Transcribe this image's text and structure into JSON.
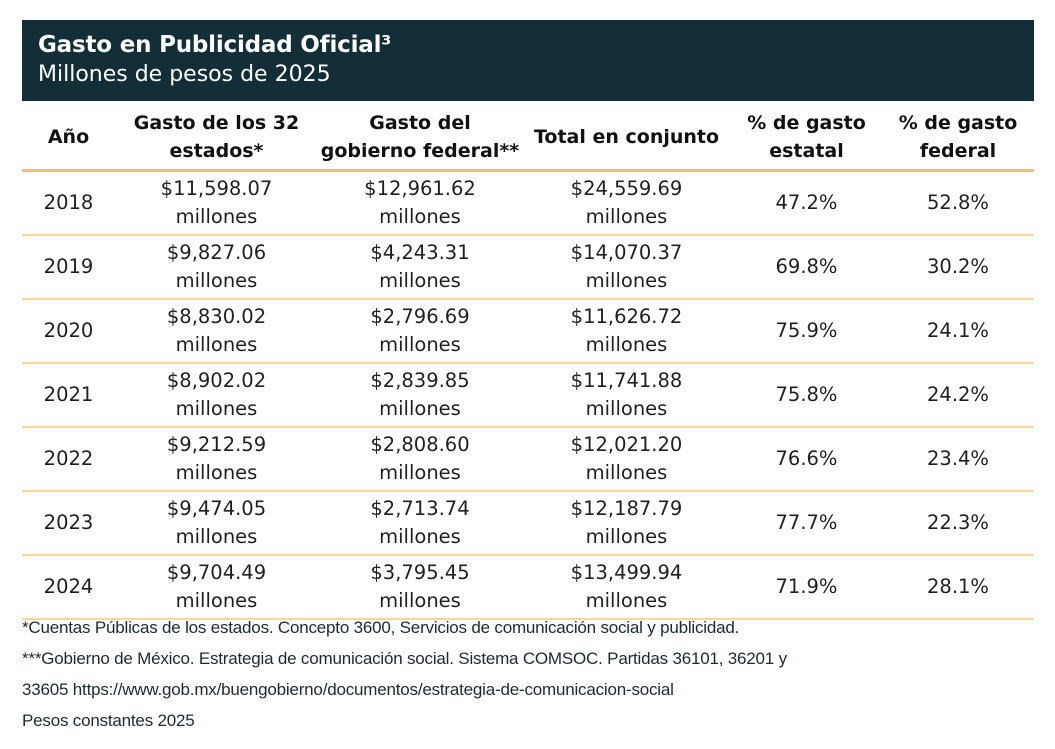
{
  "header": {
    "title": "Gasto en Publicidad Oficial³",
    "subtitle": "Millones de pesos de 2025",
    "background_color": "#132e36",
    "accent_color": "#f2c26b"
  },
  "table": {
    "columns": [
      {
        "line1": "Año",
        "line2": ""
      },
      {
        "line1": "Gasto de los 32",
        "line2": "estados*"
      },
      {
        "line1": "Gasto del",
        "line2": "gobierno federal**"
      },
      {
        "line1": "Total en conjunto",
        "line2": ""
      },
      {
        "line1": "% de gasto",
        "line2": "estatal"
      },
      {
        "line1": "% de gasto",
        "line2": "federal"
      }
    ],
    "unit_label": "millones",
    "rows": [
      {
        "year": "2018",
        "estados": "$11,598.07",
        "federal": "$12,961.62",
        "total": "$24,559.69",
        "pct_estatal": "47.2%",
        "pct_federal": "52.8%"
      },
      {
        "year": "2019",
        "estados": "$9,827.06",
        "federal": "$4,243.31",
        "total": "$14,070.37",
        "pct_estatal": "69.8%",
        "pct_federal": "30.2%"
      },
      {
        "year": "2020",
        "estados": "$8,830.02",
        "federal": "$2,796.69",
        "total": "$11,626.72",
        "pct_estatal": "75.9%",
        "pct_federal": "24.1%"
      },
      {
        "year": "2021",
        "estados": "$8,902.02",
        "federal": "$2,839.85",
        "total": "$11,741.88",
        "pct_estatal": "75.8%",
        "pct_federal": "24.2%"
      },
      {
        "year": "2022",
        "estados": "$9,212.59",
        "federal": "$2,808.60",
        "total": "$12,021.20",
        "pct_estatal": "76.6%",
        "pct_federal": "23.4%"
      },
      {
        "year": "2023",
        "estados": "$9,474.05",
        "federal": "$2,713.74",
        "total": "$12,187.79",
        "pct_estatal": "77.7%",
        "pct_federal": "22.3%"
      },
      {
        "year": "2024",
        "estados": "$9,704.49",
        "federal": "$3,795.45",
        "total": "$13,499.94",
        "pct_estatal": "71.9%",
        "pct_federal": "28.1%"
      }
    ]
  },
  "footnotes": [
    "*Cuentas Públicas de los estados. Concepto 3600, Servicios de comunicación social y publicidad.",
    "***Gobierno de México. Estrategia de comunicación social. Sistema COMSOC. Partidas 36101, 36201 y",
    "33605 https://www.gob.mx/buengobierno/documentos/estrategia-de-comunicacion-social",
    "Pesos constantes 2025"
  ]
}
